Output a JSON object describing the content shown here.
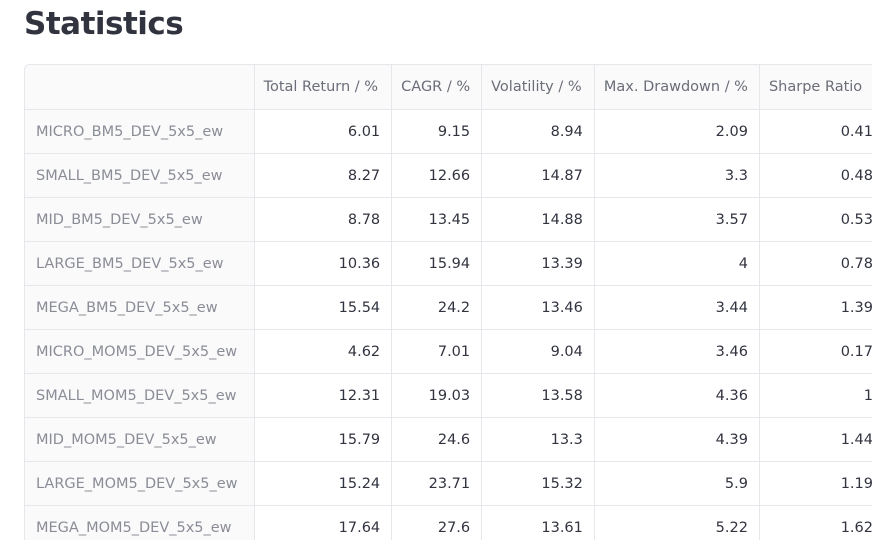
{
  "page": {
    "title": "Statistics"
  },
  "table": {
    "columns": [
      "",
      "Total Return / %",
      "CAGR / %",
      "Volatility / %",
      "Max. Drawdown / %",
      "Sharpe Ratio"
    ],
    "rows": [
      {
        "name": "MICRO_BM5_DEV_5x5_ew",
        "values": [
          "6.01",
          "9.15",
          "8.94",
          "2.09",
          "0.41"
        ]
      },
      {
        "name": "SMALL_BM5_DEV_5x5_ew",
        "values": [
          "8.27",
          "12.66",
          "14.87",
          "3.3",
          "0.48"
        ]
      },
      {
        "name": "MID_BM5_DEV_5x5_ew",
        "values": [
          "8.78",
          "13.45",
          "14.88",
          "3.57",
          "0.53"
        ]
      },
      {
        "name": "LARGE_BM5_DEV_5x5_ew",
        "values": [
          "10.36",
          "15.94",
          "13.39",
          "4",
          "0.78"
        ]
      },
      {
        "name": "MEGA_BM5_DEV_5x5_ew",
        "values": [
          "15.54",
          "24.2",
          "13.46",
          "3.44",
          "1.39"
        ]
      },
      {
        "name": "MICRO_MOM5_DEV_5x5_ew",
        "values": [
          "4.62",
          "7.01",
          "9.04",
          "3.46",
          "0.17"
        ]
      },
      {
        "name": "SMALL_MOM5_DEV_5x5_ew",
        "values": [
          "12.31",
          "19.03",
          "13.58",
          "4.36",
          "1"
        ]
      },
      {
        "name": "MID_MOM5_DEV_5x5_ew",
        "values": [
          "15.79",
          "24.6",
          "13.3",
          "4.39",
          "1.44"
        ]
      },
      {
        "name": "LARGE_MOM5_DEV_5x5_ew",
        "values": [
          "15.24",
          "23.71",
          "15.32",
          "5.9",
          "1.19"
        ]
      },
      {
        "name": "MEGA_MOM5_DEV_5x5_ew",
        "values": [
          "17.64",
          "27.6",
          "13.61",
          "5.22",
          "1.62"
        ]
      }
    ]
  },
  "colors": {
    "text": "#31333f",
    "header_text": "#6b6e78",
    "index_text": "#8a8d96",
    "header_bg": "#fafafb",
    "border": "#e6e7eb"
  }
}
